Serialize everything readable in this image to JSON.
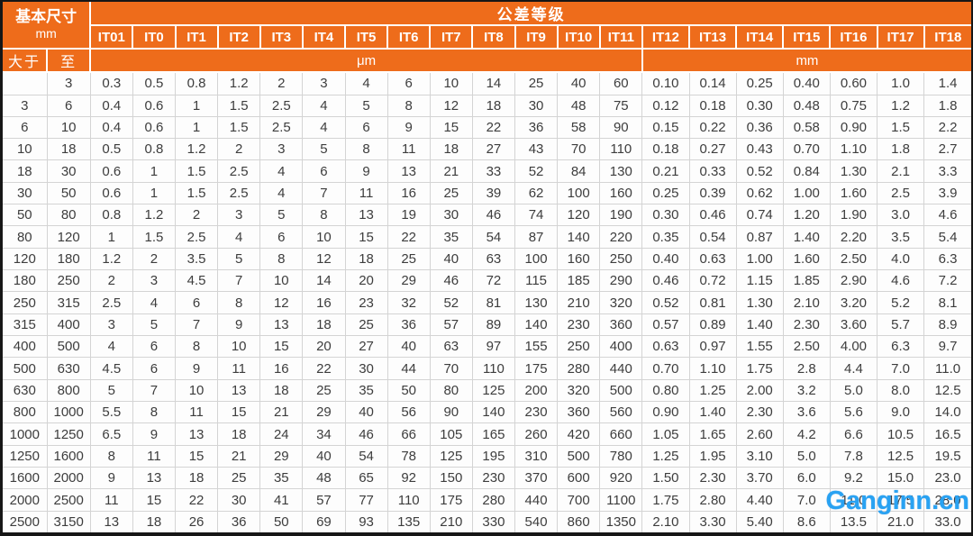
{
  "table": {
    "title": "公差等级",
    "basic_size": {
      "label": "基本尺寸",
      "unit": "mm",
      "over_label": "大于",
      "to_label": "至"
    },
    "unit_sections": {
      "micrometer": {
        "label": "μm",
        "span": 13
      },
      "millimeter": {
        "label": "mm",
        "span": 7
      }
    },
    "grades": [
      "IT01",
      "IT0",
      "IT1",
      "IT2",
      "IT3",
      "IT4",
      "IT5",
      "IT6",
      "IT7",
      "IT8",
      "IT9",
      "IT10",
      "IT11",
      "IT12",
      "IT13",
      "IT14",
      "IT15",
      "IT16",
      "IT17",
      "IT18"
    ],
    "rows": [
      {
        "over": "",
        "to": "3",
        "values": [
          "0.3",
          "0.5",
          "0.8",
          "1.2",
          "2",
          "3",
          "4",
          "6",
          "10",
          "14",
          "25",
          "40",
          "60",
          "0.10",
          "0.14",
          "0.25",
          "0.40",
          "0.60",
          "1.0",
          "1.4"
        ]
      },
      {
        "over": "3",
        "to": "6",
        "values": [
          "0.4",
          "0.6",
          "1",
          "1.5",
          "2.5",
          "4",
          "5",
          "8",
          "12",
          "18",
          "30",
          "48",
          "75",
          "0.12",
          "0.18",
          "0.30",
          "0.48",
          "0.75",
          "1.2",
          "1.8"
        ]
      },
      {
        "over": "6",
        "to": "10",
        "values": [
          "0.4",
          "0.6",
          "1",
          "1.5",
          "2.5",
          "4",
          "6",
          "9",
          "15",
          "22",
          "36",
          "58",
          "90",
          "0.15",
          "0.22",
          "0.36",
          "0.58",
          "0.90",
          "1.5",
          "2.2"
        ]
      },
      {
        "over": "10",
        "to": "18",
        "values": [
          "0.5",
          "0.8",
          "1.2",
          "2",
          "3",
          "5",
          "8",
          "11",
          "18",
          "27",
          "43",
          "70",
          "110",
          "0.18",
          "0.27",
          "0.43",
          "0.70",
          "1.10",
          "1.8",
          "2.7"
        ]
      },
      {
        "over": "18",
        "to": "30",
        "values": [
          "0.6",
          "1",
          "1.5",
          "2.5",
          "4",
          "6",
          "9",
          "13",
          "21",
          "33",
          "52",
          "84",
          "130",
          "0.21",
          "0.33",
          "0.52",
          "0.84",
          "1.30",
          "2.1",
          "3.3"
        ]
      },
      {
        "over": "30",
        "to": "50",
        "values": [
          "0.6",
          "1",
          "1.5",
          "2.5",
          "4",
          "7",
          "11",
          "16",
          "25",
          "39",
          "62",
          "100",
          "160",
          "0.25",
          "0.39",
          "0.62",
          "1.00",
          "1.60",
          "2.5",
          "3.9"
        ]
      },
      {
        "over": "50",
        "to": "80",
        "values": [
          "0.8",
          "1.2",
          "2",
          "3",
          "5",
          "8",
          "13",
          "19",
          "30",
          "46",
          "74",
          "120",
          "190",
          "0.30",
          "0.46",
          "0.74",
          "1.20",
          "1.90",
          "3.0",
          "4.6"
        ]
      },
      {
        "over": "80",
        "to": "120",
        "values": [
          "1",
          "1.5",
          "2.5",
          "4",
          "6",
          "10",
          "15",
          "22",
          "35",
          "54",
          "87",
          "140",
          "220",
          "0.35",
          "0.54",
          "0.87",
          "1.40",
          "2.20",
          "3.5",
          "5.4"
        ]
      },
      {
        "over": "120",
        "to": "180",
        "values": [
          "1.2",
          "2",
          "3.5",
          "5",
          "8",
          "12",
          "18",
          "25",
          "40",
          "63",
          "100",
          "160",
          "250",
          "0.40",
          "0.63",
          "1.00",
          "1.60",
          "2.50",
          "4.0",
          "6.3"
        ]
      },
      {
        "over": "180",
        "to": "250",
        "values": [
          "2",
          "3",
          "4.5",
          "7",
          "10",
          "14",
          "20",
          "29",
          "46",
          "72",
          "115",
          "185",
          "290",
          "0.46",
          "0.72",
          "1.15",
          "1.85",
          "2.90",
          "4.6",
          "7.2"
        ]
      },
      {
        "over": "250",
        "to": "315",
        "values": [
          "2.5",
          "4",
          "6",
          "8",
          "12",
          "16",
          "23",
          "32",
          "52",
          "81",
          "130",
          "210",
          "320",
          "0.52",
          "0.81",
          "1.30",
          "2.10",
          "3.20",
          "5.2",
          "8.1"
        ]
      },
      {
        "over": "315",
        "to": "400",
        "values": [
          "3",
          "5",
          "7",
          "9",
          "13",
          "18",
          "25",
          "36",
          "57",
          "89",
          "140",
          "230",
          "360",
          "0.57",
          "0.89",
          "1.40",
          "2.30",
          "3.60",
          "5.7",
          "8.9"
        ]
      },
      {
        "over": "400",
        "to": "500",
        "values": [
          "4",
          "6",
          "8",
          "10",
          "15",
          "20",
          "27",
          "40",
          "63",
          "97",
          "155",
          "250",
          "400",
          "0.63",
          "0.97",
          "1.55",
          "2.50",
          "4.00",
          "6.3",
          "9.7"
        ]
      },
      {
        "over": "500",
        "to": "630",
        "values": [
          "4.5",
          "6",
          "9",
          "11",
          "16",
          "22",
          "30",
          "44",
          "70",
          "110",
          "175",
          "280",
          "440",
          "0.70",
          "1.10",
          "1.75",
          "2.8",
          "4.4",
          "7.0",
          "11.0"
        ]
      },
      {
        "over": "630",
        "to": "800",
        "values": [
          "5",
          "7",
          "10",
          "13",
          "18",
          "25",
          "35",
          "50",
          "80",
          "125",
          "200",
          "320",
          "500",
          "0.80",
          "1.25",
          "2.00",
          "3.2",
          "5.0",
          "8.0",
          "12.5"
        ]
      },
      {
        "over": "800",
        "to": "1000",
        "values": [
          "5.5",
          "8",
          "11",
          "15",
          "21",
          "29",
          "40",
          "56",
          "90",
          "140",
          "230",
          "360",
          "560",
          "0.90",
          "1.40",
          "2.30",
          "3.6",
          "5.6",
          "9.0",
          "14.0"
        ]
      },
      {
        "over": "1000",
        "to": "1250",
        "values": [
          "6.5",
          "9",
          "13",
          "18",
          "24",
          "34",
          "46",
          "66",
          "105",
          "165",
          "260",
          "420",
          "660",
          "1.05",
          "1.65",
          "2.60",
          "4.2",
          "6.6",
          "10.5",
          "16.5"
        ]
      },
      {
        "over": "1250",
        "to": "1600",
        "values": [
          "8",
          "11",
          "15",
          "21",
          "29",
          "40",
          "54",
          "78",
          "125",
          "195",
          "310",
          "500",
          "780",
          "1.25",
          "1.95",
          "3.10",
          "5.0",
          "7.8",
          "12.5",
          "19.5"
        ]
      },
      {
        "over": "1600",
        "to": "2000",
        "values": [
          "9",
          "13",
          "18",
          "25",
          "35",
          "48",
          "65",
          "92",
          "150",
          "230",
          "370",
          "600",
          "920",
          "1.50",
          "2.30",
          "3.70",
          "6.0",
          "9.2",
          "15.0",
          "23.0"
        ]
      },
      {
        "over": "2000",
        "to": "2500",
        "values": [
          "11",
          "15",
          "22",
          "30",
          "41",
          "57",
          "77",
          "110",
          "175",
          "280",
          "440",
          "700",
          "1100",
          "1.75",
          "2.80",
          "4.40",
          "7.0",
          "11.0",
          "17.5",
          "28.0"
        ]
      },
      {
        "over": "2500",
        "to": "3150",
        "values": [
          "13",
          "18",
          "26",
          "36",
          "50",
          "69",
          "93",
          "135",
          "210",
          "330",
          "540",
          "860",
          "1350",
          "2.10",
          "3.30",
          "5.40",
          "8.6",
          "13.5",
          "21.0",
          "33.0"
        ]
      }
    ]
  },
  "watermark": {
    "text": "Ganginn.cn",
    "color": "#29a2f2"
  },
  "colors": {
    "header_bg": "#ee6c1b",
    "header_text": "#ffffff",
    "grid": "#d4d4d4",
    "body_text": "#3d3d3d",
    "frame": "#161616",
    "watermark_blue": "#29a2f2"
  }
}
